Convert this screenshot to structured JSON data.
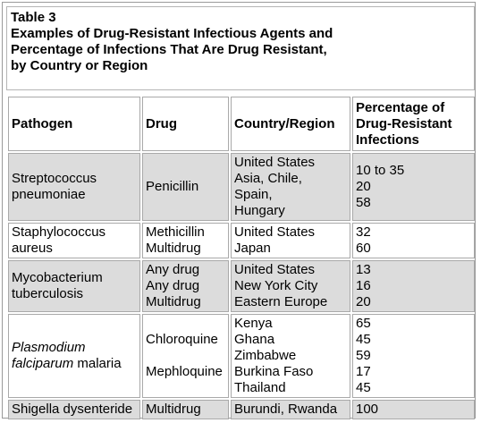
{
  "table": {
    "caption_lines": [
      "Table 3",
      "Examples of Drug-Resistant Infectious Agents and",
      "Percentage of Infections That Are Drug Resistant,",
      "by Country or Region"
    ],
    "headers": {
      "pathogen": "Pathogen",
      "drug": "Drug",
      "country": "Country/Region",
      "percentage": [
        "Percentage of",
        "Drug-Resistant",
        "Infections"
      ]
    },
    "rows": [
      {
        "pathogen": [
          "Streptococcus",
          "pneumoniae"
        ],
        "drug": "Penicillin",
        "countries": [
          "United States",
          "Asia, Chile,",
          "Spain,",
          "Hungary"
        ],
        "percentages": [
          "10 to 35",
          "20",
          "58"
        ]
      },
      {
        "pathogen": [
          "Staphylococcus",
          "aureus"
        ],
        "drugs": [
          "Methicillin",
          "Multidrug"
        ],
        "countries": [
          "United States",
          "Japan"
        ],
        "percentages": [
          "32",
          "60"
        ]
      },
      {
        "pathogen": [
          "Mycobacterium",
          "tuberculosis"
        ],
        "drugs": [
          "Any drug",
          "Any drug",
          "Multidrug"
        ],
        "countries": [
          "United States",
          "New York City",
          "Eastern Europe"
        ],
        "percentages": [
          "13",
          "16",
          "20"
        ]
      },
      {
        "pathogen_italic": [
          "Plasmodium",
          "falciparum"
        ],
        "pathogen_suffix": " malaria",
        "drugs": [
          "Chloroquine",
          "Mephloquine"
        ],
        "countries": [
          "Kenya",
          "Ghana",
          "Zimbabwe",
          "Burkina Faso",
          "Thailand"
        ],
        "percentages": [
          "65",
          "45",
          "59",
          "17",
          "45"
        ]
      },
      {
        "pathogen": "Shigella dysenteride",
        "drug": "Multidrug",
        "country": "Burundi, Rwanda",
        "percentage": "100"
      }
    ]
  }
}
